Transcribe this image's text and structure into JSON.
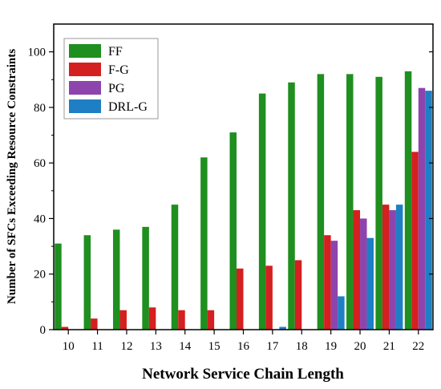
{
  "chart_data": {
    "type": "bar",
    "title": "",
    "xlabel": "Network Service Chain Length",
    "ylabel": "Number of SFCs Exceeding Resource Constraints",
    "categories": [
      "10",
      "11",
      "12",
      "13",
      "14",
      "15",
      "16",
      "17",
      "18",
      "19",
      "20",
      "21",
      "22"
    ],
    "ylim": [
      0,
      110
    ],
    "yticks": [
      "0",
      "20",
      "40",
      "60",
      "80",
      "100"
    ],
    "grid": false,
    "legend_position": "top-left",
    "series": [
      {
        "name": "FF",
        "color": "#1f8f1f",
        "values": [
          31,
          34,
          36,
          37,
          45,
          62,
          71,
          85,
          89,
          92,
          92,
          91,
          93
        ]
      },
      {
        "name": "F-G",
        "color": "#d42020",
        "values": [
          1,
          4,
          7,
          8,
          7,
          7,
          22,
          23,
          25,
          34,
          43,
          45,
          64
        ]
      },
      {
        "name": "PG",
        "color": "#8e44ad",
        "values": [
          0,
          0,
          0,
          0,
          0,
          0,
          0,
          0,
          0,
          32,
          40,
          43,
          87
        ]
      },
      {
        "name": "DRL-G",
        "color": "#1f7fc4",
        "values": [
          0,
          0,
          0,
          0,
          0,
          0,
          0,
          1,
          0,
          12,
          33,
          45,
          86
        ]
      }
    ]
  }
}
